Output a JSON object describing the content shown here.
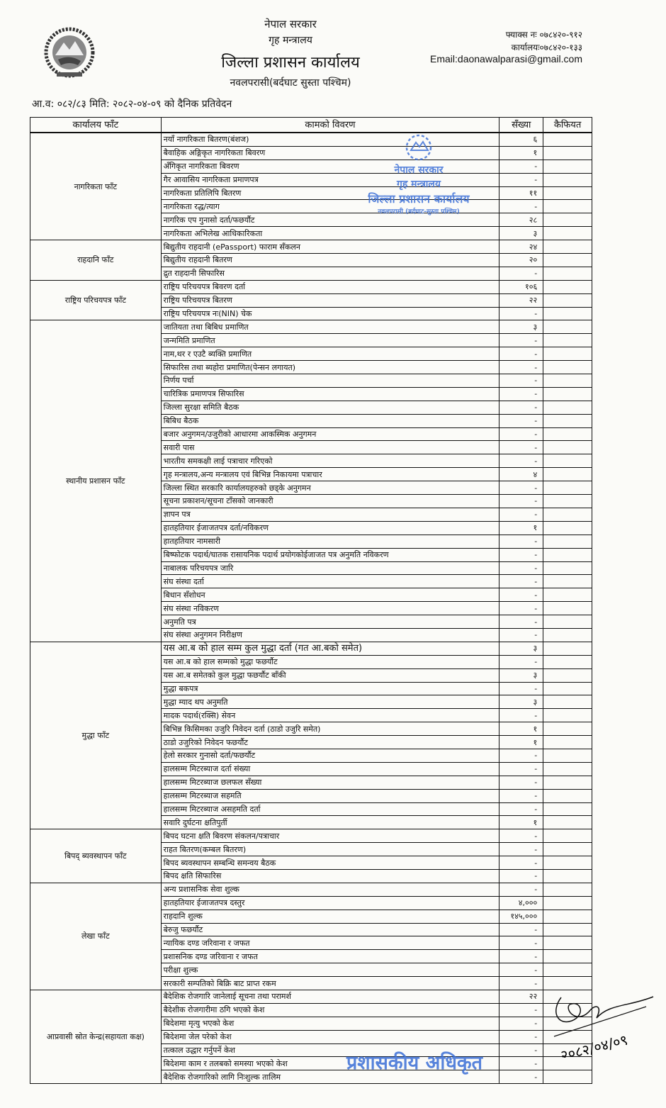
{
  "header": {
    "government": "नेपाल सरकार",
    "ministry": "गृह मन्त्रालय",
    "office": "जिल्ला प्रशासन कार्यालय",
    "district": "नवलपरासी(बर्दघाट सुस्ता पश्चिम)",
    "fax": "फ्याक्स नः ०७८४२०-९१२",
    "phone": "कार्यालयः०७८४२०-१३३",
    "email": "Email:daonawalparasi@gmail.com",
    "report_title": "आ.व: ०८२/८३ मिति: २०८२-०४-०९ को दैनिक प्रतिवेदन"
  },
  "table": {
    "headers": [
      "कार्यालय फाँट",
      "कामको विवरण",
      "सँख्या",
      "कैफियत"
    ],
    "sections": [
      {
        "name": "नागरिकता फाँट",
        "rows": [
          [
            "नयाँ नागरिकता बितरण(बंशज)",
            "६"
          ],
          [
            "बैवाहिक अङ्गिकृत नागरिकता बिवरण",
            "१"
          ],
          [
            "अँगिकृत नागरिकता बिवरण",
            "-"
          ],
          [
            "गैर आवासिय नागरिकता प्रमाणपत्र",
            "-"
          ],
          [
            "नागरिकता प्रतिलिपि बितरण",
            "११"
          ],
          [
            "नागरिकता रद्ध/त्याग",
            "-"
          ],
          [
            "नागरिक एप गुनासो दर्ता/फछर्यौट",
            "२८"
          ],
          [
            "नागरिकता अभिलेख आधिकारिकता",
            "३"
          ]
        ]
      },
      {
        "name": "राहदानि फाँट",
        "rows": [
          [
            "बिद्युतीय राहदानी (ePassport) फाराम सँकलन",
            "२४"
          ],
          [
            "बिद्युतीय राहदानी बितरण",
            "२०"
          ],
          [
            "द्रुत राहदानी सिफारिस",
            "-"
          ]
        ]
      },
      {
        "name": "राष्ट्रिय परिचयपत्र फाँट",
        "rows": [
          [
            "राष्ट्रिय परिचयपत्र बिवरण दर्ता",
            "१०६"
          ],
          [
            "राष्ट्रिय परिचयपत्र बितरण",
            "२२"
          ],
          [
            "राष्ट्रिय परिचयपत्र नः(NIN) चेक",
            "-"
          ]
        ]
      },
      {
        "name": "स्थानीय प्रशासन फाँट",
        "rows": [
          [
            "जातियता तथा बिबिध प्रमाणित",
            "३"
          ],
          [
            "जन्ममिति प्रमाणित",
            "-"
          ],
          [
            "नाम,थर र एउटै ब्यक्ति प्रमाणित",
            "-"
          ],
          [
            "सिफारिस तथा ब्यहोरा प्रमाणित(पेन्सन लगायत)",
            "-"
          ],
          [
            "निर्णय पर्चा",
            "-"
          ],
          [
            "चारित्रिक प्रमाणपत्र सिफारिस",
            "-"
          ],
          [
            "जिल्ला सुरक्षा समिति बैठक",
            "-"
          ],
          [
            "बिबिध बैठक",
            "-"
          ],
          [
            "बजार अनुगमन/उजुरीको आधारमा आकस्मिक अनुगमन",
            "-"
          ],
          [
            "सवारी पास",
            "-"
          ],
          [
            "भारतीय समकक्षी लाई पत्राचार गरिएको",
            "-"
          ],
          [
            "गृह मन्त्रालय,अन्य मन्त्रालय एवं बिभिन्न निकायमा पत्राचार",
            "४"
          ],
          [
            "जिल्ला स्थित सरकारि कार्यालयहरुको छड्के अनुगमन",
            "-"
          ],
          [
            "सूचना प्रकाशन/सूचना टाँसको जानकारी",
            "-"
          ],
          [
            "ज्ञापन पत्र",
            "-"
          ],
          [
            "हातहतियार ईजाजतपत्र दर्ता/नविकरण",
            "१"
          ],
          [
            "हातहतियार नामसारी",
            "-"
          ],
          [
            "बिष्फोटक पदार्थ/घातक रासायनिक पदार्थ प्रयोगकोईजाजत पत्र अनुमति नविकरण",
            "-"
          ],
          [
            "नाबालक परिचयपत्र जारि",
            "-"
          ],
          [
            "संघ संस्था दर्ता",
            "-"
          ],
          [
            "बिधान सँशोधन",
            "-"
          ],
          [
            "संघ संस्था नविकरण",
            "-"
          ],
          [
            "अनुमति पत्र",
            "-"
          ],
          [
            "संघ संस्था अनुगमन निरीक्षण",
            "-"
          ]
        ]
      },
      {
        "name": "मुद्धा फाँट",
        "rows": [
          [
            "यस आ.ब को हाल सम्म कुल मुद्धा दर्ता (गत आ.बको समेत)",
            "३"
          ],
          [
            "यस आ.ब को हाल सम्मको मुद्धा फछर्यौट",
            "-"
          ],
          [
            "यस आ.ब समेतको कुल मुद्धा फछर्यौट बाँकी",
            "३"
          ],
          [
            "मुद्धा बकपत्र",
            "-"
          ],
          [
            "मुद्धा म्याद थप अनुमति",
            "३"
          ],
          [
            "मादक पदार्थ(रक्सि) सेवन",
            "-"
          ],
          [
            "बिभिन्न किसिमका उजुरि निवेदन दर्ता (ठाडो उजुरि समेत)",
            "१"
          ],
          [
            "ठाडो उजुरिको निवेदन फछर्यौट",
            "१"
          ],
          [
            "हेलो सरकार गुनासो दर्ता/फछर्यौट",
            "-"
          ],
          [
            "हालसम्म मिटरब्याज दर्ता संख्या",
            "-"
          ],
          [
            "हालसम्म मिटरब्याज छलफल सँख्या",
            "-"
          ],
          [
            "हालसम्म मिटरब्याज सहमति",
            "-"
          ],
          [
            "हालसम्म मिटरब्याज असहमति दर्ता",
            "-"
          ],
          [
            "सवारि दुर्घटना क्षतिपुर्ती",
            "१"
          ]
        ]
      },
      {
        "name": "बिपद् ब्यवस्थापन फाँट",
        "rows": [
          [
            "बिपद घटना क्षति बिवरण संकलन/पत्राचार",
            "-"
          ],
          [
            "राहत बितरण(कम्बल बितरण)",
            "-"
          ],
          [
            "बिपद ब्यवस्थापन सम्बन्धि समन्वय बैठक",
            "-"
          ],
          [
            "बिपद क्षति सिफारिस",
            "-"
          ]
        ]
      },
      {
        "name": "लेखा फाँट",
        "rows": [
          [
            "अन्य प्रशासनिक सेवा शुल्क",
            "-"
          ],
          [
            "हातहतियार ईजाजतपत्र दस्तुर",
            "४,०००"
          ],
          [
            "राहदानि शुल्क",
            "१४५,०००"
          ],
          [
            "बेरुजु फछर्यौट",
            "-"
          ],
          [
            "न्यायिक दण्ड जरिवाना र जफत",
            "-"
          ],
          [
            "प्रशासनिक दण्ड जरिवाना र जफत",
            "-"
          ],
          [
            "परीक्षा शुल्क",
            "-"
          ],
          [
            "सरकारी सम्पतिको बिक्रि बाट प्राप्त रकम",
            "-"
          ]
        ]
      },
      {
        "name": "आप्रवासी स्रोत केन्द्र(सहायता कक्ष)",
        "rows": [
          [
            "बैदेशिक रोजगारि जानेलाई सूचना तथा परामर्श",
            "२२"
          ],
          [
            "बैदेशीक रोजगारीमा ठगि भएको केश",
            "-"
          ],
          [
            "बिदेशमा मृत्यु भएको केश",
            "-"
          ],
          [
            "बिदेशमा जेल परेको केश",
            "-"
          ],
          [
            "तत्काल उद्धार गर्नुपर्ने केश",
            "-"
          ],
          [
            "बिदेशमा काम र तलबको समस्या भएको केश",
            "-"
          ],
          [
            "बैदेशिक रोजगारिको लागि निःशुल्क तालिम",
            "-"
          ]
        ]
      }
    ]
  },
  "stamps": {
    "seal_text": [
      "नेपाल सरकार",
      "गृह मन्त्रालय",
      "जिल्ला प्रशासन कार्यालय",
      "नवलपरासी (बर्दघाट-सुस्ता पश्चिम)"
    ],
    "signature_date": "२०८२/०४/०९",
    "officer_title": "प्रशासकीय अधिकृत",
    "stamp_color": "#3b6fd6"
  }
}
